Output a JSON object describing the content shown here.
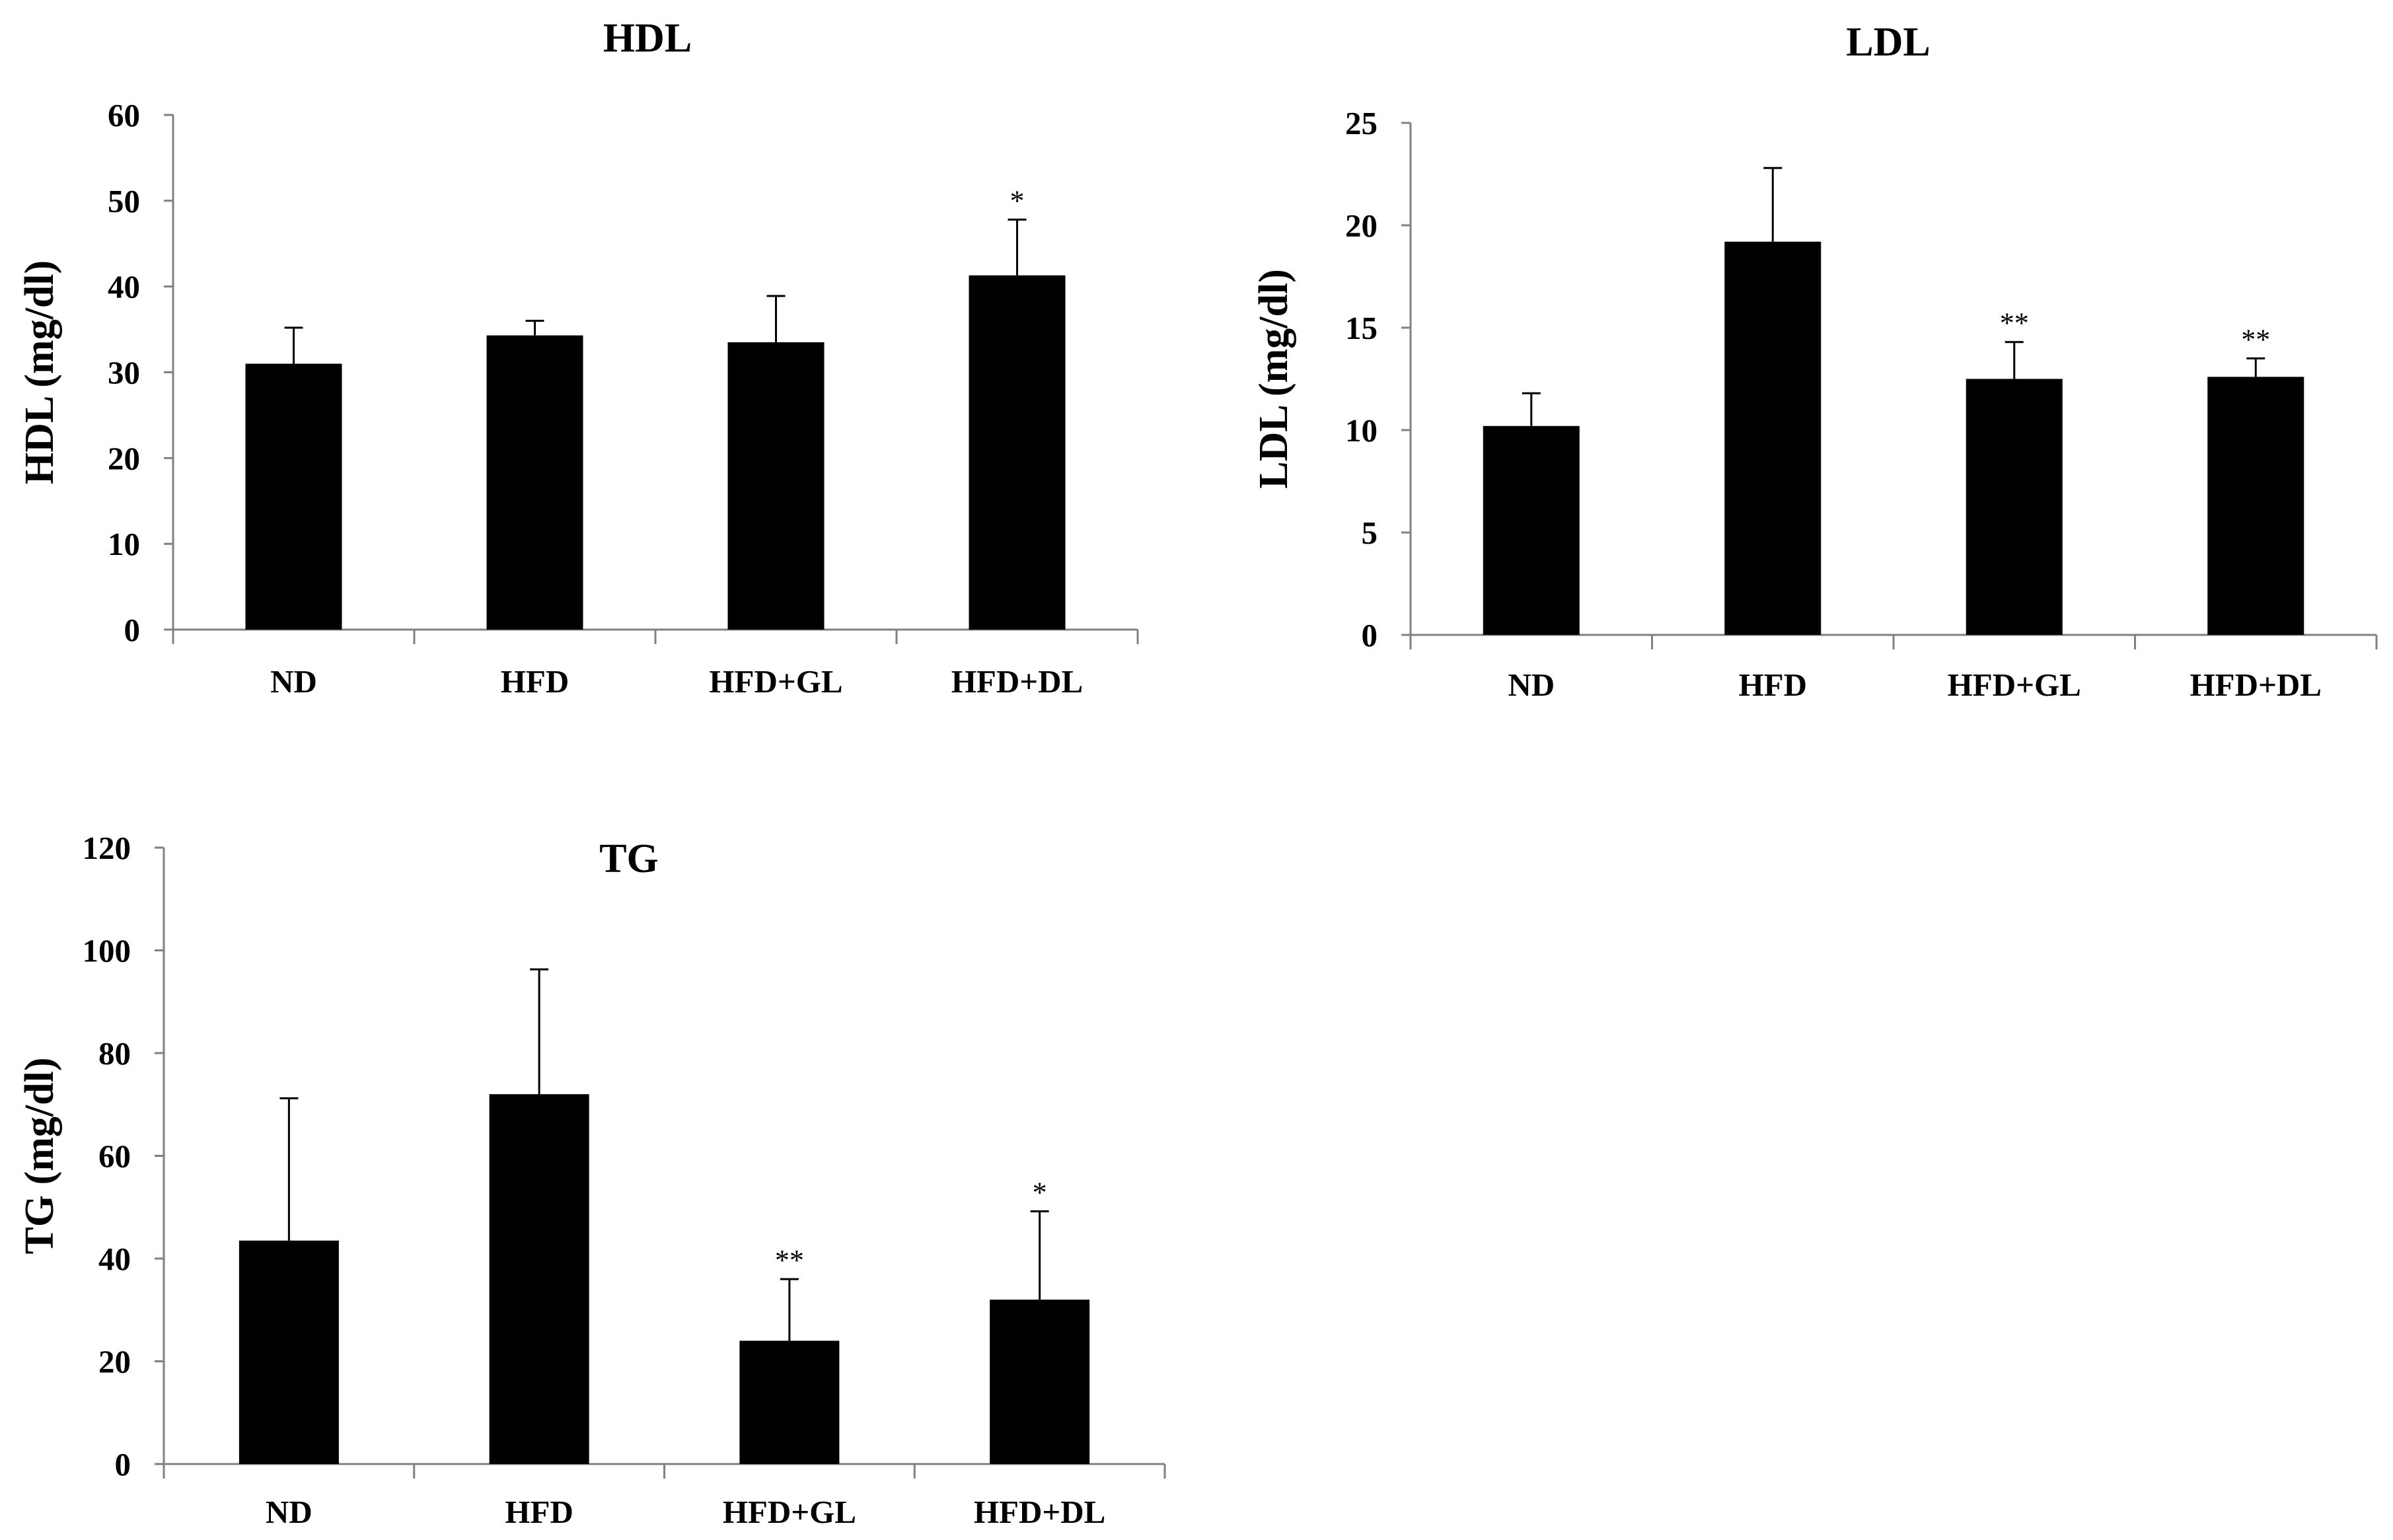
{
  "chart_data": [
    {
      "type": "bar",
      "title": "HDL",
      "ylabel": "HDL (mg/dl)",
      "xlabel": "",
      "categories": [
        "ND",
        "HFD",
        "HFD+GL",
        "HFD+DL"
      ],
      "values": [
        31,
        34.3,
        33.5,
        41.3
      ],
      "error_upper": [
        35.2,
        36.0,
        38.9,
        47.8
      ],
      "annotations": [
        "",
        "",
        "",
        "*"
      ],
      "ylim": [
        0,
        60
      ],
      "yticks": [
        "0",
        "10",
        "20",
        "30",
        "40",
        "50",
        "60"
      ],
      "ytick_values": [
        0,
        10,
        20,
        30,
        40,
        50,
        60
      ],
      "color": "#000000",
      "grid": false
    },
    {
      "type": "bar",
      "title": "LDL",
      "ylabel": "LDL (mg/dl)",
      "xlabel": "",
      "categories": [
        "ND",
        "HFD",
        "HFD+GL",
        "HFD+DL"
      ],
      "values": [
        10.2,
        19.2,
        12.5,
        12.6
      ],
      "error_upper": [
        11.8,
        22.8,
        14.3,
        13.5
      ],
      "annotations": [
        "",
        "",
        "**",
        "**"
      ],
      "ylim": [
        0,
        25
      ],
      "yticks": [
        "0",
        "5",
        "10",
        "15",
        "20",
        "25"
      ],
      "ytick_values": [
        0,
        5,
        10,
        15,
        20,
        25
      ],
      "color": "#000000",
      "grid": false
    },
    {
      "type": "bar",
      "title": "TG",
      "ylabel": "TG (mg/dl)",
      "xlabel": "",
      "categories": [
        "ND",
        "HFD",
        "HFD+GL",
        "HFD+DL"
      ],
      "values": [
        43.5,
        72,
        24,
        32
      ],
      "error_upper": [
        71.2,
        96.3,
        36,
        49.2
      ],
      "annotations": [
        "",
        "",
        "**",
        "*"
      ],
      "ylim": [
        0,
        120
      ],
      "yticks": [
        "0",
        "20",
        "40",
        "60",
        "80",
        "100",
        "120"
      ],
      "ytick_values": [
        0,
        20,
        40,
        60,
        80,
        100,
        120
      ],
      "color": "#000000",
      "grid": false
    }
  ]
}
